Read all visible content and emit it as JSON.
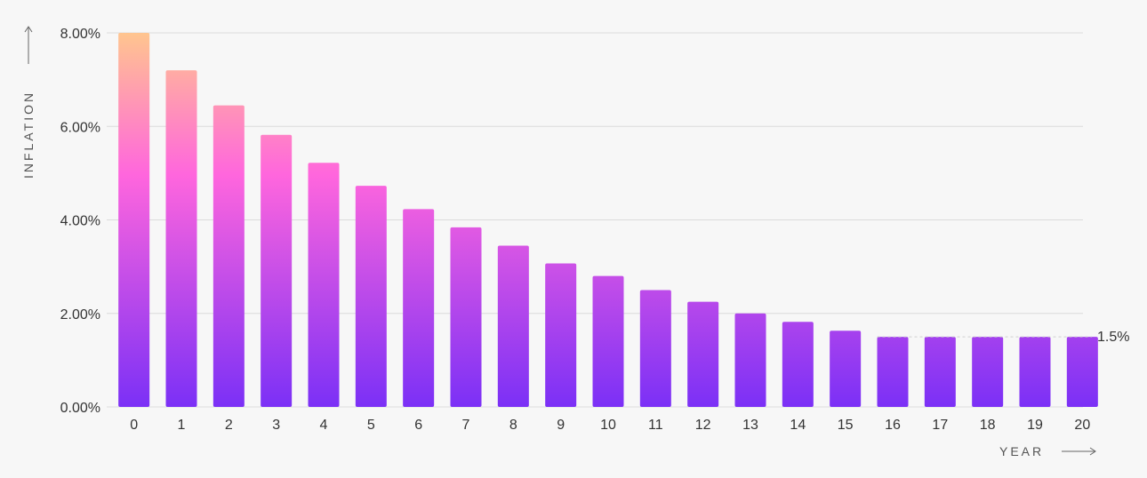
{
  "chart_data": {
    "type": "bar",
    "categories": [
      "0",
      "1",
      "2",
      "3",
      "4",
      "5",
      "6",
      "7",
      "8",
      "9",
      "10",
      "11",
      "12",
      "13",
      "14",
      "15",
      "16",
      "17",
      "18",
      "19",
      "20"
    ],
    "values": [
      8.0,
      7.2,
      6.45,
      5.82,
      5.22,
      4.73,
      4.23,
      3.84,
      3.45,
      3.07,
      2.8,
      2.5,
      2.25,
      2.0,
      1.82,
      1.63,
      1.5,
      1.5,
      1.5,
      1.5,
      1.5
    ],
    "xlabel": "YEAR",
    "ylabel": "INFLATION",
    "ylim": [
      0,
      8
    ],
    "yticks": [
      "0.00%",
      "2.00%",
      "4.00%",
      "6.00%",
      "8.00%"
    ],
    "ytick_values": [
      0,
      2,
      4,
      6,
      8
    ],
    "annotation": {
      "label": "1.5%",
      "value": 1.5
    },
    "grid": true,
    "legend": "none",
    "colors": {
      "gradient_top": "#ffc58f",
      "gradient_mid": "#ff66dd",
      "gradient_bottom": "#7b30f6",
      "grid": "#dcdcdc",
      "text": "#333333",
      "background": "#f7f7f7"
    }
  }
}
